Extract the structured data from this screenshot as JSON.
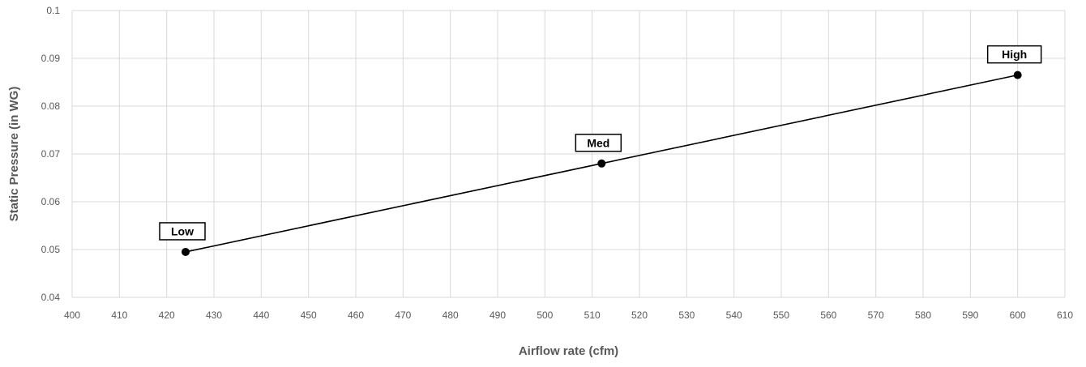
{
  "chart_data": {
    "type": "line",
    "title": "",
    "xlabel": "Airflow rate (cfm)",
    "ylabel": "Static Pressure (in WG)",
    "xlim": [
      400,
      610
    ],
    "ylim": [
      0.04,
      0.1
    ],
    "x_ticks": [
      400,
      410,
      420,
      430,
      440,
      450,
      460,
      470,
      480,
      490,
      500,
      510,
      520,
      530,
      540,
      550,
      560,
      570,
      580,
      590,
      600,
      610
    ],
    "y_ticks": [
      0.04,
      0.05,
      0.06,
      0.07,
      0.08,
      0.09,
      0.1
    ],
    "x_tick_labels": [
      "400",
      "410",
      "420",
      "430",
      "440",
      "450",
      "460",
      "470",
      "480",
      "490",
      "500",
      "510",
      "520",
      "530",
      "540",
      "550",
      "560",
      "570",
      "580",
      "590",
      "600",
      "610"
    ],
    "y_tick_labels": [
      "0.04",
      "0.05",
      "0.06",
      "0.07",
      "0.08",
      "0.09",
      "0.1"
    ],
    "grid": true,
    "legend": "none",
    "colors": {
      "line": "#000000",
      "marker": "#000000",
      "grid": "#d9d9d9",
      "tick_text": "#595959",
      "axis_title": "#595959",
      "label_box_border": "#000000",
      "label_box_fill": "#ffffff"
    },
    "series": [
      {
        "points": [
          {
            "x": 424,
            "y": 0.0495,
            "label": "Low"
          },
          {
            "x": 512,
            "y": 0.068,
            "label": "Med"
          },
          {
            "x": 600,
            "y": 0.0865,
            "label": "High"
          }
        ]
      }
    ]
  }
}
